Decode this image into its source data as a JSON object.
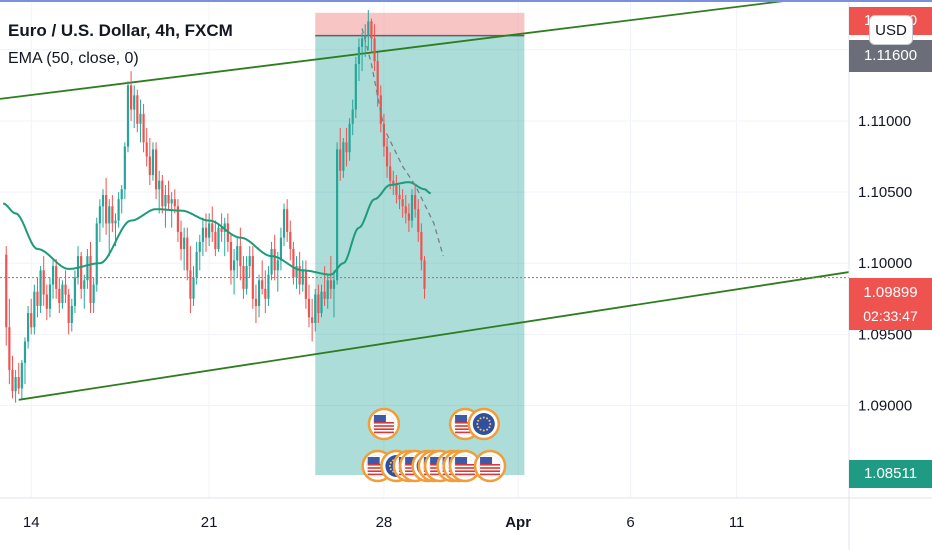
{
  "legend": {
    "title": "Euro / U.S. Dollar, 4h, FXCM",
    "ema_label": "EMA (50, close, 0)"
  },
  "currency_button": "USD",
  "price_labels": {
    "top_red": "1.11?50",
    "top_gray": "1.11600",
    "current": "1.09899",
    "countdown": "02:33:47",
    "bottom_green": "1.08511"
  },
  "colors": {
    "up": "#26a69a",
    "down": "#ef5350",
    "ema": "#1e9b78",
    "trendline": "#2e7d1f",
    "current_price": "#ef5350",
    "target_zone": "#26a69a",
    "stop_zone": "#f28b8b",
    "axis_text": "#131722"
  },
  "chart_data": {
    "type": "candlestick",
    "title": "Euro / U.S. Dollar, 4h, FXCM",
    "interval": "4h",
    "indicator": "EMA (50, close, 0)",
    "y_ticks": [
      1.115,
      1.11,
      1.105,
      1.1,
      1.095,
      1.09
    ],
    "x_ticks": [
      {
        "label": "14",
        "bold": false,
        "bar": 8
      },
      {
        "label": "21",
        "bold": false,
        "bar": 65
      },
      {
        "label": "28",
        "bold": false,
        "bar": 121
      },
      {
        "label": "Apr",
        "bold": true,
        "bar": 164
      },
      {
        "label": "6",
        "bold": false,
        "bar": 200
      },
      {
        "label": "11",
        "bold": false,
        "bar": 234
      }
    ],
    "ylim": [
      1.0835,
      1.1185
    ],
    "x_bars": [
      -2,
      270
    ],
    "current_price": 1.09899,
    "series_ohlc": [
      [
        1.1006,
        1.1012,
        1.0942,
        1.0955
      ],
      [
        1.0955,
        1.0975,
        1.0915,
        1.0925
      ],
      [
        1.0925,
        1.0935,
        1.0905,
        1.091
      ],
      [
        1.091,
        1.0925,
        1.0902,
        1.092
      ],
      [
        1.092,
        1.093,
        1.0908,
        1.0912
      ],
      [
        1.0912,
        1.0932,
        1.0905,
        1.093
      ],
      [
        1.093,
        1.0948,
        1.0915,
        1.0945
      ],
      [
        1.0945,
        1.097,
        1.094,
        1.0965
      ],
      [
        1.0965,
        1.0975,
        1.095,
        1.0955
      ],
      [
        1.0955,
        1.0985,
        1.095,
        1.098
      ],
      [
        1.098,
        1.099,
        1.0962,
        1.097
      ],
      [
        1.097,
        1.0998,
        1.0965,
        1.0995
      ],
      [
        1.0995,
        1.1005,
        1.097,
        1.0978
      ],
      [
        1.0978,
        1.0985,
        1.096,
        1.0968
      ],
      [
        1.0968,
        1.099,
        1.0962,
        1.0985
      ],
      [
        1.0985,
        1.1002,
        1.0975,
        1.0998
      ],
      [
        1.0998,
        1.1003,
        1.0975,
        1.0982
      ],
      [
        1.0982,
        1.099,
        1.0965,
        1.0972
      ],
      [
        1.0972,
        1.0988,
        1.0968,
        1.0985
      ],
      [
        1.0985,
        1.0995,
        1.0972,
        1.0978
      ],
      [
        1.0978,
        1.0982,
        1.095,
        1.0958
      ],
      [
        1.0958,
        1.0975,
        1.0952,
        1.097
      ],
      [
        1.097,
        1.0995,
        1.0965,
        1.099
      ],
      [
        1.099,
        1.1012,
        1.0985,
        1.1005
      ],
      [
        1.1005,
        1.1008,
        1.0975,
        1.0982
      ],
      [
        1.0982,
        1.0992,
        1.0968,
        1.0988
      ],
      [
        1.0988,
        1.101,
        1.0982,
        1.1005
      ],
      [
        1.1005,
        1.1015,
        1.0965,
        1.0972
      ],
      [
        1.0972,
        1.099,
        1.0965,
        1.0985
      ],
      [
        1.0985,
        1.1032,
        1.098,
        1.1028
      ],
      [
        1.1028,
        1.1045,
        1.1015,
        1.104
      ],
      [
        1.104,
        1.1052,
        1.1025,
        1.1048
      ],
      [
        1.1048,
        1.106,
        1.102,
        1.1028
      ],
      [
        1.1028,
        1.1045,
        1.1005,
        1.104
      ],
      [
        1.104,
        1.1048,
        1.1022,
        1.1028
      ],
      [
        1.1028,
        1.1035,
        1.1012,
        1.103
      ],
      [
        1.103,
        1.105,
        1.1025,
        1.1045
      ],
      [
        1.1045,
        1.1055,
        1.1035,
        1.1052
      ],
      [
        1.1052,
        1.1085,
        1.1045,
        1.1082
      ],
      [
        1.1082,
        1.1128,
        1.1078,
        1.1125
      ],
      [
        1.1125,
        1.1135,
        1.11,
        1.1108
      ],
      [
        1.1108,
        1.1125,
        1.1095,
        1.1118
      ],
      [
        1.1118,
        1.1122,
        1.1092,
        1.1098
      ],
      [
        1.1098,
        1.1115,
        1.1085,
        1.1105
      ],
      [
        1.1105,
        1.1112,
        1.1078,
        1.1085
      ],
      [
        1.1085,
        1.1095,
        1.1068,
        1.1075
      ],
      [
        1.1075,
        1.1088,
        1.1055,
        1.1062
      ],
      [
        1.1062,
        1.1085,
        1.1058,
        1.108
      ],
      [
        1.108,
        1.1085,
        1.1045,
        1.1052
      ],
      [
        1.1052,
        1.1065,
        1.1035,
        1.1058
      ],
      [
        1.1058,
        1.1062,
        1.1035,
        1.104
      ],
      [
        1.104,
        1.1055,
        1.1025,
        1.1048
      ],
      [
        1.1048,
        1.1058,
        1.1038,
        1.1042
      ],
      [
        1.1042,
        1.105,
        1.1025,
        1.1045
      ],
      [
        1.1045,
        1.1052,
        1.1035,
        1.104
      ],
      [
        1.104,
        1.1045,
        1.1015,
        1.1022
      ],
      [
        1.1022,
        1.103,
        1.1002,
        1.101
      ],
      [
        1.101,
        1.1025,
        1.0995,
        1.1018
      ],
      [
        1.1018,
        1.1025,
        1.0988,
        1.0995
      ],
      [
        1.0995,
        1.1012,
        1.0965,
        1.0975
      ],
      [
        1.0975,
        1.0998,
        1.097,
        1.099
      ],
      [
        1.099,
        1.1015,
        1.0985,
        1.1008
      ],
      [
        1.1008,
        1.102,
        1.0995,
        1.1015
      ],
      [
        1.1015,
        1.1032,
        1.1005,
        1.1025
      ],
      [
        1.1025,
        1.1035,
        1.1008,
        1.1018
      ],
      [
        1.1018,
        1.1035,
        1.1012,
        1.1028
      ],
      [
        1.1028,
        1.104,
        1.1015,
        1.1022
      ],
      [
        1.1022,
        1.103,
        1.1005,
        1.101
      ],
      [
        1.101,
        1.1028,
        1.1008,
        1.1025
      ],
      [
        1.1025,
        1.1035,
        1.1015,
        1.1022
      ],
      [
        1.1022,
        1.1032,
        1.1005,
        1.1028
      ],
      [
        1.1028,
        1.1035,
        1.1008,
        1.1015
      ],
      [
        1.1015,
        1.102,
        1.0985,
        1.0995
      ],
      [
        1.0995,
        1.101,
        1.0978,
        1.1002
      ],
      [
        1.1002,
        1.1018,
        1.099,
        1.1012
      ],
      [
        1.1012,
        1.1025,
        1.0988,
        1.0998
      ],
      [
        1.0998,
        1.1005,
        1.0975,
        1.0982
      ],
      [
        1.0982,
        1.1005,
        1.0978,
        1.0998
      ],
      [
        1.0998,
        1.1012,
        1.099,
        1.1005
      ],
      [
        1.1005,
        1.1012,
        1.0968,
        1.0975
      ],
      [
        1.0975,
        1.0985,
        1.0958,
        1.097
      ],
      [
        1.097,
        1.0992,
        1.0962,
        1.0988
      ],
      [
        1.0988,
        1.1002,
        1.0978,
        1.0982
      ],
      [
        1.0982,
        1.0995,
        1.0965,
        1.0975
      ],
      [
        1.0975,
        1.0998,
        1.097,
        1.0992
      ],
      [
        1.0992,
        1.1015,
        1.0988,
        1.101
      ],
      [
        1.101,
        1.102,
        1.0988,
        1.0995
      ],
      [
        1.0995,
        1.1008,
        1.098,
        1.1002
      ],
      [
        1.1002,
        1.1025,
        1.0995,
        1.1018
      ],
      [
        1.1018,
        1.1042,
        1.1012,
        1.1038
      ],
      [
        1.1038,
        1.1045,
        1.1015,
        1.1022
      ],
      [
        1.1022,
        1.103,
        1.1002,
        1.101
      ],
      [
        1.101,
        1.1015,
        1.0985,
        1.099
      ],
      [
        1.099,
        1.1005,
        1.0982,
        1.0998
      ],
      [
        1.0998,
        1.1008,
        1.0978,
        1.0985
      ],
      [
        1.0985,
        1.1002,
        1.098,
        1.0995
      ],
      [
        1.0995,
        1.1002,
        1.0968,
        1.0975
      ],
      [
        1.0975,
        1.0985,
        1.0955,
        1.0962
      ],
      [
        1.0962,
        1.0975,
        1.0945,
        1.0958
      ],
      [
        1.0958,
        1.0982,
        1.0952,
        1.0978
      ],
      [
        1.0978,
        1.0985,
        1.0958,
        1.0965
      ],
      [
        1.0965,
        1.0985,
        1.0962,
        1.098
      ],
      [
        1.098,
        1.0998,
        1.097,
        1.0975
      ],
      [
        1.0975,
        1.0992,
        1.0968,
        1.0988
      ],
      [
        1.0988,
        1.1005,
        1.0975,
        1.0982
      ],
      [
        1.0982,
        1.0995,
        1.0962,
        1.0988
      ],
      [
        1.0988,
        1.1085,
        1.0985,
        1.108
      ],
      [
        1.108,
        1.1095,
        1.1058,
        1.1065
      ],
      [
        1.1065,
        1.1088,
        1.106,
        1.1085
      ],
      [
        1.1085,
        1.1095,
        1.1068,
        1.1078
      ],
      [
        1.1078,
        1.1102,
        1.1072,
        1.1098
      ],
      [
        1.1098,
        1.1115,
        1.109,
        1.1108
      ],
      [
        1.1108,
        1.1145,
        1.1102,
        1.114
      ],
      [
        1.114,
        1.1158,
        1.1128,
        1.1152
      ],
      [
        1.1152,
        1.1162,
        1.1135,
        1.1158
      ],
      [
        1.1158,
        1.1168,
        1.1145,
        1.116
      ],
      [
        1.116,
        1.1178,
        1.115,
        1.117
      ],
      [
        1.117,
        1.1172,
        1.1148,
        1.1158
      ],
      [
        1.1158,
        1.1168,
        1.1135,
        1.1142
      ],
      [
        1.1142,
        1.1148,
        1.111,
        1.1118
      ],
      [
        1.1118,
        1.1125,
        1.1092,
        1.1098
      ],
      [
        1.1098,
        1.1105,
        1.1075,
        1.1082
      ],
      [
        1.1082,
        1.1088,
        1.106,
        1.1068
      ],
      [
        1.1068,
        1.1078,
        1.1052,
        1.1058
      ],
      [
        1.1058,
        1.1065,
        1.1048,
        1.1055
      ],
      [
        1.1055,
        1.1062,
        1.1042,
        1.1048
      ],
      [
        1.1048,
        1.1055,
        1.1038,
        1.1045
      ],
      [
        1.1045,
        1.1052,
        1.1032,
        1.104
      ],
      [
        1.104,
        1.1048,
        1.1028,
        1.1035
      ],
      [
        1.1035,
        1.1042,
        1.1022,
        1.103
      ],
      [
        1.103,
        1.1052,
        1.1025,
        1.1048
      ],
      [
        1.1048,
        1.1055,
        1.1032,
        1.1038
      ],
      [
        1.1038,
        1.1045,
        1.1015,
        1.1022
      ],
      [
        1.1022,
        1.1028,
        1.0995,
        1.1002
      ],
      [
        1.1002,
        1.1005,
        1.0975,
        1.0982
      ]
    ],
    "ema": {
      "name": "EMA (50, close, 0)",
      "bar_range": [
        -1,
        136
      ],
      "anchors": [
        [
          -1,
          1.1042
        ],
        [
          3,
          1.1035
        ],
        [
          10,
          1.101
        ],
        [
          20,
          1.0996
        ],
        [
          30,
          1.1
        ],
        [
          40,
          1.103
        ],
        [
          48,
          1.1038
        ],
        [
          56,
          1.1037
        ],
        [
          65,
          1.103
        ],
        [
          75,
          1.1018
        ],
        [
          85,
          1.1005
        ],
        [
          95,
          1.0995
        ],
        [
          104,
          1.0992
        ],
        [
          108,
          1.1
        ],
        [
          113,
          1.1025
        ],
        [
          118,
          1.1045
        ],
        [
          123,
          1.1055
        ],
        [
          129,
          1.1057
        ],
        [
          134,
          1.1052
        ],
        [
          136,
          1.1049
        ]
      ]
    },
    "trendlines": [
      {
        "name": "upper-channel",
        "from": [
          -2,
          1.11155
        ],
        "to": [
          270,
          1.119
        ]
      },
      {
        "name": "lower-channel",
        "from": [
          4,
          1.0904
        ],
        "to": [
          270,
          1.09938
        ]
      }
    ],
    "short_position": {
      "x_from": 99,
      "x_to": 166,
      "stop": 1.1176,
      "entry": 1.116,
      "target": 1.08511
    },
    "projection_path": [
      [
        114,
        1.1165
      ],
      [
        117,
        1.114
      ],
      [
        121,
        1.1095
      ],
      [
        127,
        1.1068
      ],
      [
        131,
        1.1055
      ],
      [
        137,
        1.1028
      ],
      [
        140,
        1.1005
      ]
    ],
    "event_icons": [
      {
        "kind": "us",
        "bar": 121,
        "row": "upper"
      },
      {
        "kind": "us",
        "bar": 147,
        "row": "upper"
      },
      {
        "kind": "eu",
        "bar": 153,
        "row": "upper"
      },
      {
        "kind": "us",
        "bar": 119,
        "row": "lower"
      },
      {
        "kind": "eu",
        "bar": 125,
        "row": "lower"
      },
      {
        "kind": "us",
        "bar": 129,
        "row": "lower"
      },
      {
        "kind": "us",
        "bar": 131,
        "row": "lower"
      },
      {
        "kind": "eu",
        "bar": 135,
        "row": "lower"
      },
      {
        "kind": "us",
        "bar": 137,
        "row": "lower"
      },
      {
        "kind": "us",
        "bar": 139,
        "row": "lower"
      },
      {
        "kind": "us",
        "bar": 143,
        "row": "lower"
      },
      {
        "kind": "us",
        "bar": 145,
        "row": "lower"
      },
      {
        "kind": "us",
        "bar": 147,
        "row": "lower"
      },
      {
        "kind": "us",
        "bar": 155,
        "row": "lower"
      }
    ]
  }
}
